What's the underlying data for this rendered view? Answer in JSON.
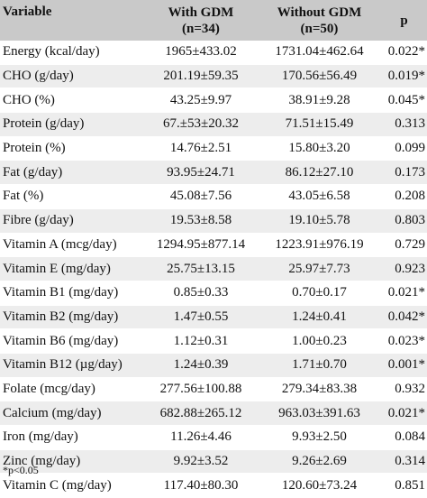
{
  "header": {
    "variable": "Variable",
    "gdm_label": "With GDM",
    "gdm_n": "(n=34)",
    "nogdm_label": "Without GDM",
    "nogdm_n": "(n=50)",
    "p": "p"
  },
  "rows": [
    {
      "variable": "Energy (kcal/day)",
      "gdm": "1965±433.02",
      "nogdm": "1731.04±462.64",
      "p": "0.022*"
    },
    {
      "variable": "CHO (g/day)",
      "gdm": "201.19±59.35",
      "nogdm": "170.56±56.49",
      "p": "0.019*"
    },
    {
      "variable": "CHO (%)",
      "gdm": "43.25±9.97",
      "nogdm": "38.91±9.28",
      "p": "0.045*"
    },
    {
      "variable": "Protein (g/day)",
      "gdm": "67.±53±20.32",
      "nogdm": "71.51±15.49",
      "p": "0.313"
    },
    {
      "variable": "Protein (%)",
      "gdm": "14.76±2.51",
      "nogdm": "15.80±3.20",
      "p": "0.099"
    },
    {
      "variable": "Fat (g/day)",
      "gdm": "93.95±24.71",
      "nogdm": "86.12±27.10",
      "p": "0.173"
    },
    {
      "variable": "Fat (%)",
      "gdm": "45.08±7.56",
      "nogdm": "43.05±6.58",
      "p": "0.208"
    },
    {
      "variable": "Fibre (g/day)",
      "gdm": "19.53±8.58",
      "nogdm": "19.10±5.78",
      "p": "0.803"
    },
    {
      "variable": "Vitamin A (mcg/day)",
      "gdm": "1294.95±877.14",
      "nogdm": "1223.91±976.19",
      "p": "0.729"
    },
    {
      "variable": "Vitamin E (mg/day)",
      "gdm": "25.75±13.15",
      "nogdm": "25.97±7.73",
      "p": "0.923"
    },
    {
      "variable": "Vitamin B1 (mg/day)",
      "gdm": "0.85±0.33",
      "nogdm": "0.70±0.17",
      "p": "0.021*"
    },
    {
      "variable": "Vitamin B2 (mg/day)",
      "gdm": "1.47±0.55",
      "nogdm": "1.24±0.41",
      "p": "0.042*"
    },
    {
      "variable": "Vitamin B6 (mg/day)",
      "gdm": "1.12±0.31",
      "nogdm": "1.00±0.23",
      "p": "0.023*"
    },
    {
      "variable": "Vitamin B12 (µg/day)",
      "gdm": "1.24±0.39",
      "nogdm": "1.71±0.70",
      "p": "0.001*"
    },
    {
      "variable": "Folate (mcg/day)",
      "gdm": "277.56±100.88",
      "nogdm": "279.34±83.38",
      "p": "0.932"
    },
    {
      "variable": "Calcium (mg/day)",
      "gdm": "682.88±265.12",
      "nogdm": "963.03±391.63",
      "p": "0.021*"
    },
    {
      "variable": "Iron (mg/day)",
      "gdm": "11.26±4.46",
      "nogdm": "9.93±2.50",
      "p": "0.084"
    },
    {
      "variable": "Zinc (mg/day)",
      "gdm": "9.92±3.52",
      "nogdm": "9.26±2.69",
      "p": "0.314"
    },
    {
      "variable": "Vitamin C (mg/day)",
      "gdm": "117.40±80.30",
      "nogdm": "120.60±73.24",
      "p": "0.851"
    }
  ],
  "footnote": "*p<0.05"
}
